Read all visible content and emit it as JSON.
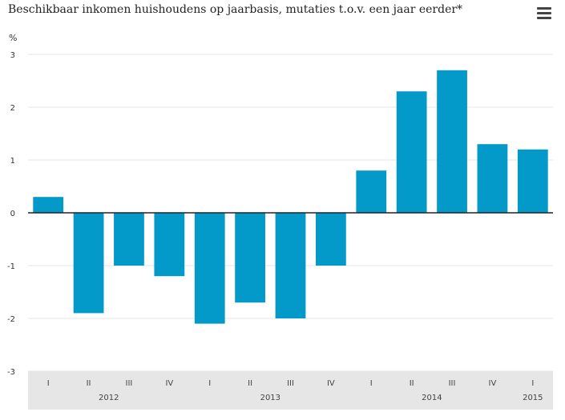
{
  "title": "Beschikbaar inkomen huishoudens op jaarbasis, mutaties t.o.v. een jaar eerder*",
  "menu_icon": "hamburger-menu-icon",
  "colors": {
    "bar": "#0399c9",
    "axis_band": "#e6e6e6",
    "grid": "#e4e4e4",
    "zero_line": "#222222"
  },
  "chart_data": {
    "type": "bar",
    "title": "Beschikbaar inkomen huishoudens op jaarbasis, mutaties t.o.v. een jaar eerder*",
    "ylabel": "%",
    "xlabel": "",
    "ylim": [
      -3,
      3
    ],
    "yticks": [
      "3",
      "2",
      "1",
      "0",
      "-1",
      "-2",
      "-3"
    ],
    "categories": [
      "I",
      "II",
      "III",
      "IV",
      "I",
      "II",
      "III",
      "IV",
      "I",
      "II",
      "III",
      "IV",
      "I"
    ],
    "year_labels": [
      {
        "label": "2012",
        "quarter_start": 0,
        "quarter_count": 4
      },
      {
        "label": "2013",
        "quarter_start": 4,
        "quarter_count": 4
      },
      {
        "label": "2014",
        "quarter_start": 8,
        "quarter_count": 4
      },
      {
        "label": "2015",
        "quarter_start": 12,
        "quarter_count": 1
      }
    ],
    "values": [
      0.3,
      -1.9,
      -1.0,
      -1.2,
      -2.1,
      -1.7,
      -2.0,
      -1.0,
      0.8,
      2.3,
      2.7,
      1.3,
      1.2
    ],
    "grid": true,
    "legend": "none"
  }
}
